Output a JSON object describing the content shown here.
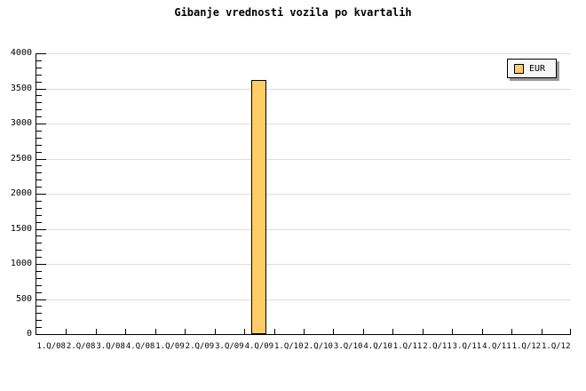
{
  "title": "Gibanje vrednosti vozila po kvartalih",
  "legend": {
    "label": "EUR",
    "position": "top-right",
    "swatch_color": "#FFCC66"
  },
  "colors": {
    "background": "#FFFFFF",
    "text": "#000000",
    "axis": "#000000",
    "grid": "#DDDDDD",
    "bar_fill": "#FFCC66",
    "bar_border": "#000000",
    "legend_fill": "#F6F6F6",
    "legend_shadow": "#999999"
  },
  "chart_data": {
    "type": "bar",
    "title": "Gibanje vrednosti vozila po kvartalih",
    "xlabel": "",
    "ylabel": "",
    "ylim": [
      0,
      4000
    ],
    "y_major_step": 500,
    "y_minor_step": 100,
    "grid": "horizontal-major",
    "legend_position": "top-right",
    "categories": [
      "1.Q/08",
      "2.Q/08",
      "3.Q/08",
      "4.Q/08",
      "1.Q/09",
      "2.Q/09",
      "3.Q/09",
      "4.Q/09",
      "1.Q/10",
      "2.Q/10",
      "3.Q/10",
      "4.Q/10",
      "1.Q/11",
      "2.Q/11",
      "3.Q/11",
      "4.Q/11",
      "1.Q/12",
      "1.Q/12"
    ],
    "series": [
      {
        "name": "EUR",
        "values": [
          null,
          null,
          null,
          null,
          null,
          null,
          null,
          3620,
          null,
          null,
          null,
          null,
          null,
          null,
          null,
          null,
          null,
          null
        ]
      }
    ]
  }
}
